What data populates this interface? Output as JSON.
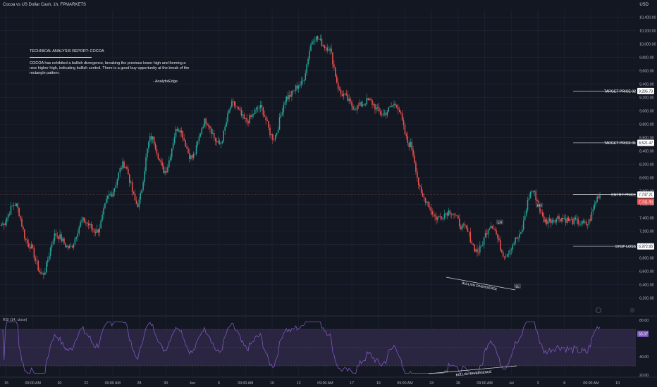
{
  "header": {
    "title": "Cocoa vs US Dollar Cash, 1h, FPMARKETS",
    "currency": "USD"
  },
  "report": {
    "title": "TECHNICAL ANALYSIS REPORT: COCOA",
    "body": "COCOA has exhibited a bullish divergence, breaking the previous lower high and forming a new higher high, indicating bullish control. There is a good buy opportunity at the break of the rectangle pattern.",
    "signature": "- AnalytixEdge"
  },
  "colors": {
    "background": "#131722",
    "up": "#26a69a",
    "down": "#ef5350",
    "rsi_line": "#7e57c2",
    "rsi_band": "#2a2540"
  },
  "chart_data": [
    {
      "type": "candlestick",
      "interval": "1h",
      "ylim": [
        6200,
        10400
      ],
      "y_ticks": [
        "10,400.00",
        "10,200.00",
        "10,000.00",
        "9,800.00",
        "9,600.00",
        "9,400.00",
        "9,200.00",
        "9,000.00",
        "8,800.00",
        "8,600.00",
        "8,400.00",
        "8,200.00",
        "8,000.00",
        "7,800.00",
        "7,600.00",
        "7,400.00",
        "7,200.00",
        "7,000.00",
        "6,800.00",
        "6,600.00",
        "6,400.00",
        "6,200.00"
      ],
      "x_ticks": [
        "15",
        "09:00 AM",
        "20",
        "22",
        "09:00 AM",
        "28",
        "30",
        "Jun",
        "5",
        "09:00 AM",
        "10",
        "12",
        "09:00 AM",
        "17",
        "19",
        "09:00 AM",
        "24",
        "26",
        "09:00 AM",
        "Jul",
        "3",
        "8",
        "09:00 AM",
        "10"
      ],
      "anchors": [
        7300,
        7600,
        7000,
        6550,
        7150,
        6950,
        7350,
        7200,
        7750,
        8200,
        7600,
        8600,
        8100,
        8750,
        8300,
        8850,
        8500,
        9100,
        8850,
        9050,
        8600,
        9200,
        9400,
        10100,
        9950,
        9250,
        9050,
        9150,
        8950,
        9100,
        8500,
        7700,
        7400,
        7500,
        7250,
        6900,
        7300,
        6850,
        7100,
        7800,
        7350,
        7400,
        7350,
        7300,
        7750
      ],
      "levels": [
        {
          "label": "TARGET PRICE 02",
          "price": 9295.73,
          "price_label": "9,295.73"
        },
        {
          "label": "TARGET PRICE 01",
          "price": 8521.47,
          "price_label": "8,521.47"
        },
        {
          "label": "ENTRY PRICE",
          "price": 7747.21,
          "price_label": "7,747.21"
        },
        {
          "label": "STOP LOSS",
          "price": 6972.95,
          "price_label": "6,972.95"
        }
      ],
      "current_price_label": "7,741.90",
      "annotations": [
        {
          "text": "LH"
        },
        {
          "text": "HH"
        },
        {
          "text": "LL"
        },
        {
          "text": "BULLISH DIVERGENCE"
        }
      ]
    },
    {
      "type": "line",
      "name": "RSI (14, close)",
      "ylim": [
        20,
        80
      ],
      "y_ticks": [
        "80.00",
        "40.00",
        "20.00"
      ],
      "band": [
        30,
        70
      ],
      "current_label": "65.07",
      "current_value": 65.07,
      "annotations": [
        {
          "text": "BULLISH DIVERGENCE"
        }
      ]
    }
  ]
}
